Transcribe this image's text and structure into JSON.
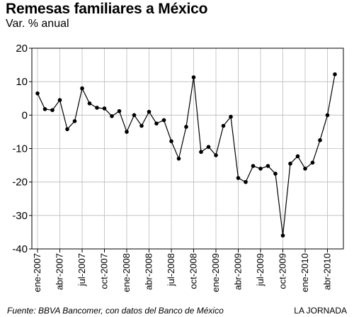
{
  "header": {
    "title": "Remesas familiares a México",
    "subtitle": "Var. % anual"
  },
  "footer": {
    "source": "Fuente: BBVA Bancomer, con datos del Banco de México",
    "credit": "LA JORNADA"
  },
  "colors": {
    "frame": "#000000",
    "grid": "#bbbbbb",
    "line": "#000000",
    "marker": "#000000"
  },
  "chart_data": {
    "type": "line",
    "title": "Remesas familiares a México",
    "subtitle": "Var. % anual",
    "ylim": [
      -40,
      20
    ],
    "yticks": [
      20,
      10,
      0,
      -10,
      -20,
      -30,
      -40
    ],
    "grid": true,
    "xticks": [
      "ene-2007",
      "abr-2007",
      "jul-2007",
      "oct-2007",
      "ene-2008",
      "abr-2008",
      "jul-2008",
      "oct-2008",
      "ene-2009",
      "abr-2009",
      "jul-2009",
      "oct-2009",
      "ene-2010",
      "abr-2010"
    ],
    "series": [
      {
        "values": [
          6.5,
          1.8,
          1.5,
          4.5,
          -4.2,
          -1.8,
          8.0,
          3.5,
          2.2,
          2.0,
          -0.3,
          1.2,
          -5.0,
          0.0,
          -3.2,
          1.0,
          -2.5,
          -1.5,
          -7.8,
          -13.0,
          -3.5,
          11.3,
          -11.0,
          -9.5,
          -12.0,
          -3.2,
          -0.5,
          -18.8,
          -20.0,
          -15.2,
          -16.0,
          -15.2,
          -17.5,
          -36.0,
          -14.5,
          -12.3,
          -16.0,
          -14.2,
          -7.5,
          0.0,
          12.2
        ]
      }
    ]
  }
}
